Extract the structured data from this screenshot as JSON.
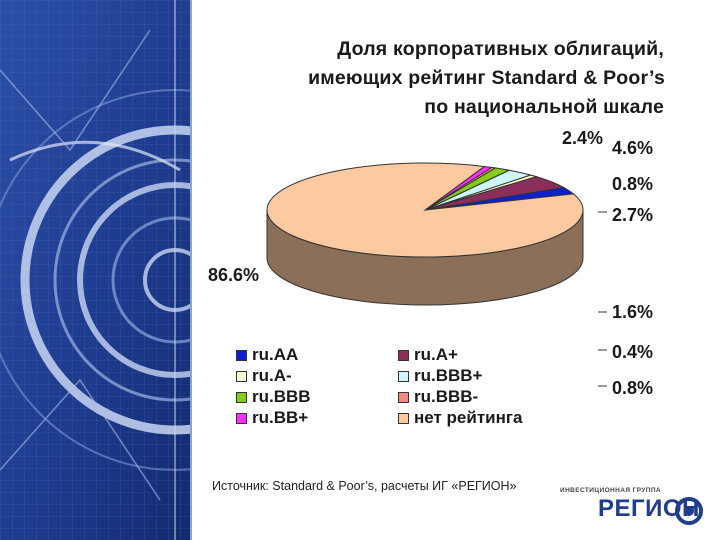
{
  "title": {
    "line1": "Доля корпоративных облигаций,",
    "line2": "имеющих рейтинг Standard & Poor’s",
    "line3": "по национальной шкале"
  },
  "chart_data": {
    "type": "pie",
    "categories": [
      "ru.AA",
      "ru.A+",
      "ru.A-",
      "ru.BBB+",
      "ru.BBB",
      "ru.BBB-",
      "ru.BB+",
      "нет рейтинга"
    ],
    "values": [
      2.4,
      4.6,
      0.8,
      2.7,
      1.6,
      0.4,
      0.8,
      86.6
    ],
    "labels": [
      "2.4%",
      "4.6%",
      "0.8%",
      "2.7%",
      "1.6%",
      "0.4%",
      "0.8%",
      "86.6%"
    ],
    "colors": [
      "#0b1fd0",
      "#8b2e5a",
      "#fffbd0",
      "#cdf7f7",
      "#84cc16",
      "#f08a80",
      "#ff30ff",
      "#fdc9a0"
    ],
    "legend_position": "bottom"
  },
  "legend": {
    "items": [
      {
        "label": "ru.AA",
        "color": "#0b1fd0"
      },
      {
        "label": "ru.A+",
        "color": "#8b2e5a"
      },
      {
        "label": "ru.A-",
        "color": "#fffbd0"
      },
      {
        "label": "ru.BBB+",
        "color": "#cdf7f7"
      },
      {
        "label": "ru.BBB",
        "color": "#84cc16"
      },
      {
        "label": "ru.BBB-",
        "color": "#f08a80"
      },
      {
        "label": "ru.BB+",
        "color": "#ff30ff"
      },
      {
        "label": "нет рейтинга",
        "color": "#fdc9a0"
      }
    ]
  },
  "source": "Источник: Standard & Poor’s, расчеты ИГ «РЕГИОН»",
  "logo": {
    "caption": "ИНВЕСТИЦИОННАЯ ГРУППА",
    "word": "РЕГИОН"
  },
  "colors": {
    "panel_blue": "#1f3f96",
    "pie_main": "#fdc9a0",
    "pie_side": "#8c6d5e"
  }
}
